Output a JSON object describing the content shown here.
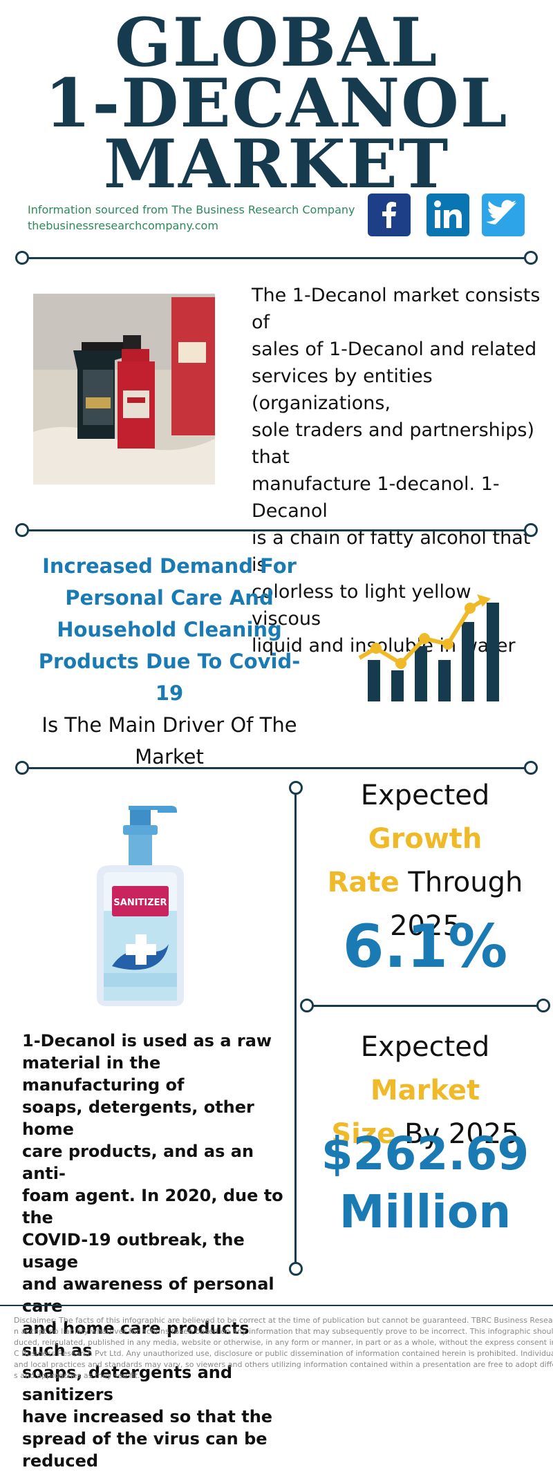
{
  "title": {
    "line1": "GLOBAL",
    "line2": "1-DECANOL",
    "line3": "MARKET"
  },
  "source": {
    "line1": "Information sourced from The Business Research Company",
    "line2": "thebusinessresearchcompany.com"
  },
  "social": {
    "facebook_icon": "facebook-icon",
    "linkedin_icon": "linkedin-icon",
    "twitter_icon": "twitter-icon"
  },
  "intro": {
    "lines": [
      "The 1-Decanol market consists of",
      "sales of 1-Decanol and related",
      "services by entities (organizations,",
      "sole traders and partnerships) that",
      "manufacture 1-decanol. 1-Decanol",
      "is a chain of fatty alcohol that is",
      "colorless to light yellow viscous",
      "liquid and insoluble in water"
    ]
  },
  "driver": {
    "highlight_lines": [
      "Increased Demand For",
      "Personal Care And",
      "Household Cleaning",
      "Products Due To Covid-19"
    ],
    "plain_lines": [
      "Is The Main Driver Of The",
      "Market"
    ]
  },
  "growth": {
    "head_pre": "Expected ",
    "head_gold1": "Growth",
    "head_gold2": "Rate",
    "head_post": " Through",
    "head_year": "2025",
    "value": "6.1%"
  },
  "market_size": {
    "head_pre": "Expected ",
    "head_gold1": "Market",
    "head_gold2": "Size",
    "head_post": " By 2025",
    "value_line1": "$262.69",
    "value_line2": "Million"
  },
  "sanitizer_label": "SANITIZER",
  "usage": {
    "lines": [
      "1-Decanol is used as a raw",
      "material in the manufacturing of",
      "soaps, detergents, other home",
      "care products, and as an anti-",
      "foam agent. In 2020, due to the",
      "COVID-19 outbreak, the usage",
      "and awareness of personal care",
      "and home care products such as",
      "soaps, detergents and sanitizers",
      "have increased so that the",
      "spread of the virus can be",
      "reduced"
    ]
  },
  "disclaimer": {
    "lines": [
      "Disclaimer: The facts of this infographic are believed to be correct at the time of publication but cannot be guaranteed. TBRC Business Research Pvt Ltd c",
      "n accept no liability whatever for actions taken based on any information that may subsequently prove to be incorrect. This infographic should not be repr",
      "duced, reirculated, published in any media, website or otherwise, in any form or manner, in part or as a whole, without the express consent in writing of TBR",
      "C Business Research Pvt Ltd. Any unauthorized use, disclosure or public dissemination of information contained herein is prohibited. Individual situations",
      "and local practices and standards may vary, so viewers and others utilizing information contained within a presentation are free to adopt differing standar",
      "s and approaches as they see fit."
    ]
  },
  "colors": {
    "navy": "#173b4e",
    "blue": "#1a7bb4",
    "gold": "#f0b928",
    "green": "#2a8a5a"
  }
}
